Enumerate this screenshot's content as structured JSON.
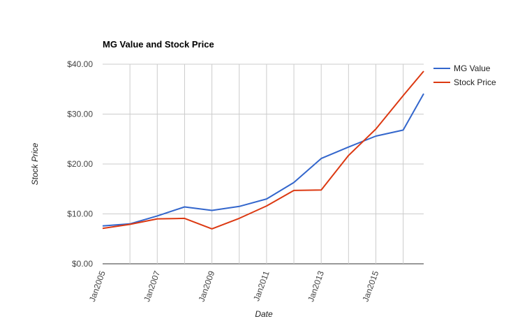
{
  "chart_data": {
    "type": "line",
    "title": "MG Value and Stock Price",
    "xlabel": "Date",
    "ylabel": "Stock Price",
    "x": [
      "2005-01",
      "2006-01",
      "2007-01",
      "2008-01",
      "2009-01",
      "2010-01",
      "2011-01",
      "2012-01",
      "2013-01",
      "2014-01",
      "2015-01",
      "2016-01",
      "2016-10"
    ],
    "x_ticks": [
      "Jan2005",
      "Jan2007",
      "Jan2009",
      "Jan2011",
      "Jan2013",
      "Jan2015"
    ],
    "y_ticks": [
      "$0.00",
      "$10.00",
      "$20.00",
      "$30.00",
      "$40.00"
    ],
    "ylim": [
      0,
      40
    ],
    "grid": true,
    "legend_position": "right",
    "series": [
      {
        "name": "MG Value",
        "color": "#3366cc",
        "values": [
          7.6,
          8.0,
          9.6,
          11.4,
          10.7,
          11.5,
          13.0,
          16.3,
          21.1,
          23.4,
          25.6,
          26.8,
          34.1
        ]
      },
      {
        "name": "Stock Price",
        "color": "#dc3912",
        "values": [
          7.1,
          7.9,
          9.0,
          9.1,
          7.0,
          9.1,
          11.6,
          14.7,
          14.8,
          21.7,
          27.0,
          33.7,
          38.6
        ]
      }
    ]
  }
}
